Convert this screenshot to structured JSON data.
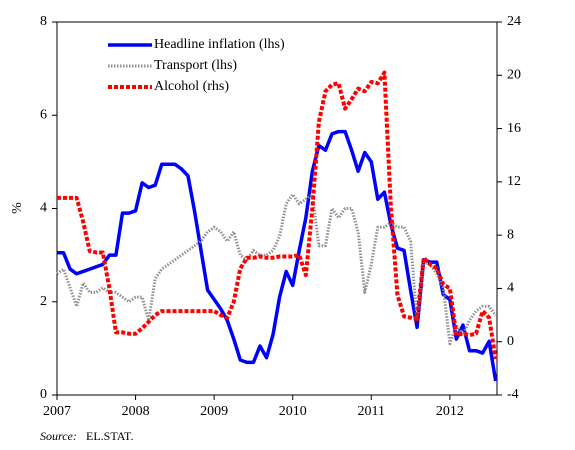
{
  "chart_data": {
    "type": "line",
    "ylabel": "%",
    "source_label": "Source:",
    "source": "EL.STAT.",
    "x": [
      2007,
      2007.083,
      2007.167,
      2007.25,
      2007.333,
      2007.417,
      2007.5,
      2007.583,
      2007.667,
      2007.75,
      2007.833,
      2007.917,
      2008,
      2008.083,
      2008.167,
      2008.25,
      2008.333,
      2008.417,
      2008.5,
      2008.583,
      2008.667,
      2008.75,
      2008.833,
      2008.917,
      2009,
      2009.083,
      2009.167,
      2009.25,
      2009.333,
      2009.417,
      2009.5,
      2009.583,
      2009.667,
      2009.75,
      2009.833,
      2009.917,
      2010,
      2010.083,
      2010.167,
      2010.25,
      2010.333,
      2010.417,
      2010.5,
      2010.583,
      2010.667,
      2010.75,
      2010.833,
      2010.917,
      2011,
      2011.083,
      2011.167,
      2011.25,
      2011.333,
      2011.417,
      2011.5,
      2011.583,
      2011.667,
      2011.75,
      2011.833,
      2011.917,
      2012,
      2012.083,
      2012.167,
      2012.25,
      2012.333,
      2012.417,
      2012.5,
      2012.583
    ],
    "series": [
      {
        "name": "Headline inflation (lhs)",
        "color": "#0000ff",
        "values": [
          3.05,
          3.05,
          2.7,
          2.6,
          2.65,
          2.7,
          2.75,
          2.8,
          3.0,
          3.0,
          3.9,
          3.9,
          3.95,
          4.55,
          4.45,
          4.5,
          4.95,
          4.95,
          4.95,
          4.85,
          4.7,
          3.95,
          3.1,
          2.25,
          2.05,
          1.85,
          1.6,
          1.2,
          0.75,
          0.7,
          0.7,
          1.05,
          0.8,
          1.3,
          2.1,
          2.65,
          2.35,
          3.1,
          3.8,
          4.8,
          5.35,
          5.25,
          5.6,
          5.65,
          5.65,
          5.25,
          4.8,
          5.2,
          5.0,
          4.2,
          4.35,
          3.65,
          3.15,
          3.1,
          2.25,
          1.45,
          2.9,
          2.85,
          2.85,
          2.15,
          2.05,
          1.2,
          1.5,
          0.95,
          0.95,
          0.9,
          1.15,
          0.3
        ]
      },
      {
        "name": "Transport (lhs)",
        "color": "#909090",
        "values": [
          2.6,
          2.7,
          2.3,
          1.9,
          2.4,
          2.2,
          2.2,
          2.3,
          2.2,
          2.2,
          2.1,
          2.0,
          2.1,
          2.1,
          1.6,
          2.5,
          2.7,
          2.8,
          2.9,
          3.0,
          3.1,
          3.2,
          3.3,
          3.5,
          3.6,
          3.5,
          3.3,
          3.5,
          3.0,
          2.9,
          3.1,
          3.0,
          3.0,
          3.1,
          3.4,
          4.1,
          4.3,
          4.1,
          4.2,
          4.3,
          3.2,
          3.2,
          4.0,
          3.8,
          4.0,
          4.0,
          3.5,
          2.2,
          2.8,
          3.6,
          3.6,
          3.7,
          3.6,
          3.6,
          3.3,
          1.6,
          2.85,
          2.8,
          2.6,
          2.3,
          1.1,
          1.5,
          1.3,
          1.6,
          1.8,
          1.9,
          1.9,
          1.7
        ]
      },
      {
        "name": "Alcohol (rhs)",
        "color": "#ff0000",
        "axis": "y2",
        "values": [
          10.8,
          10.8,
          10.8,
          10.8,
          9,
          6.8,
          6.7,
          6.7,
          4,
          0.7,
          0.7,
          0.6,
          0.6,
          1,
          1.5,
          2,
          2.3,
          2.3,
          2.3,
          2.3,
          2.3,
          2.3,
          2.3,
          2.3,
          2.3,
          2,
          1.8,
          3,
          5.5,
          6.3,
          6.3,
          6.4,
          6.3,
          6.3,
          6.4,
          6.4,
          6.4,
          6.5,
          5,
          10,
          16.5,
          18.8,
          19.3,
          19.4,
          17.5,
          18.2,
          19,
          18.8,
          19.5,
          19.4,
          20.2,
          10,
          3.5,
          1.9,
          1.8,
          1.7,
          6.3,
          5.8,
          5.5,
          4.3,
          4,
          0.5,
          0.6,
          0.5,
          0.6,
          2.3,
          1.8,
          -1.3
        ]
      }
    ],
    "xlim": [
      2007,
      2012.6
    ],
    "xticks": [
      2007,
      2008,
      2009,
      2010,
      2011,
      2012
    ],
    "ylim": [
      0,
      8
    ],
    "yticks": [
      0,
      2,
      4,
      6,
      8
    ],
    "y2lim": [
      -4,
      24
    ],
    "y2ticks": [
      -4,
      0,
      4,
      8,
      12,
      16,
      20,
      24
    ],
    "grid": false,
    "legend": "top-left"
  }
}
